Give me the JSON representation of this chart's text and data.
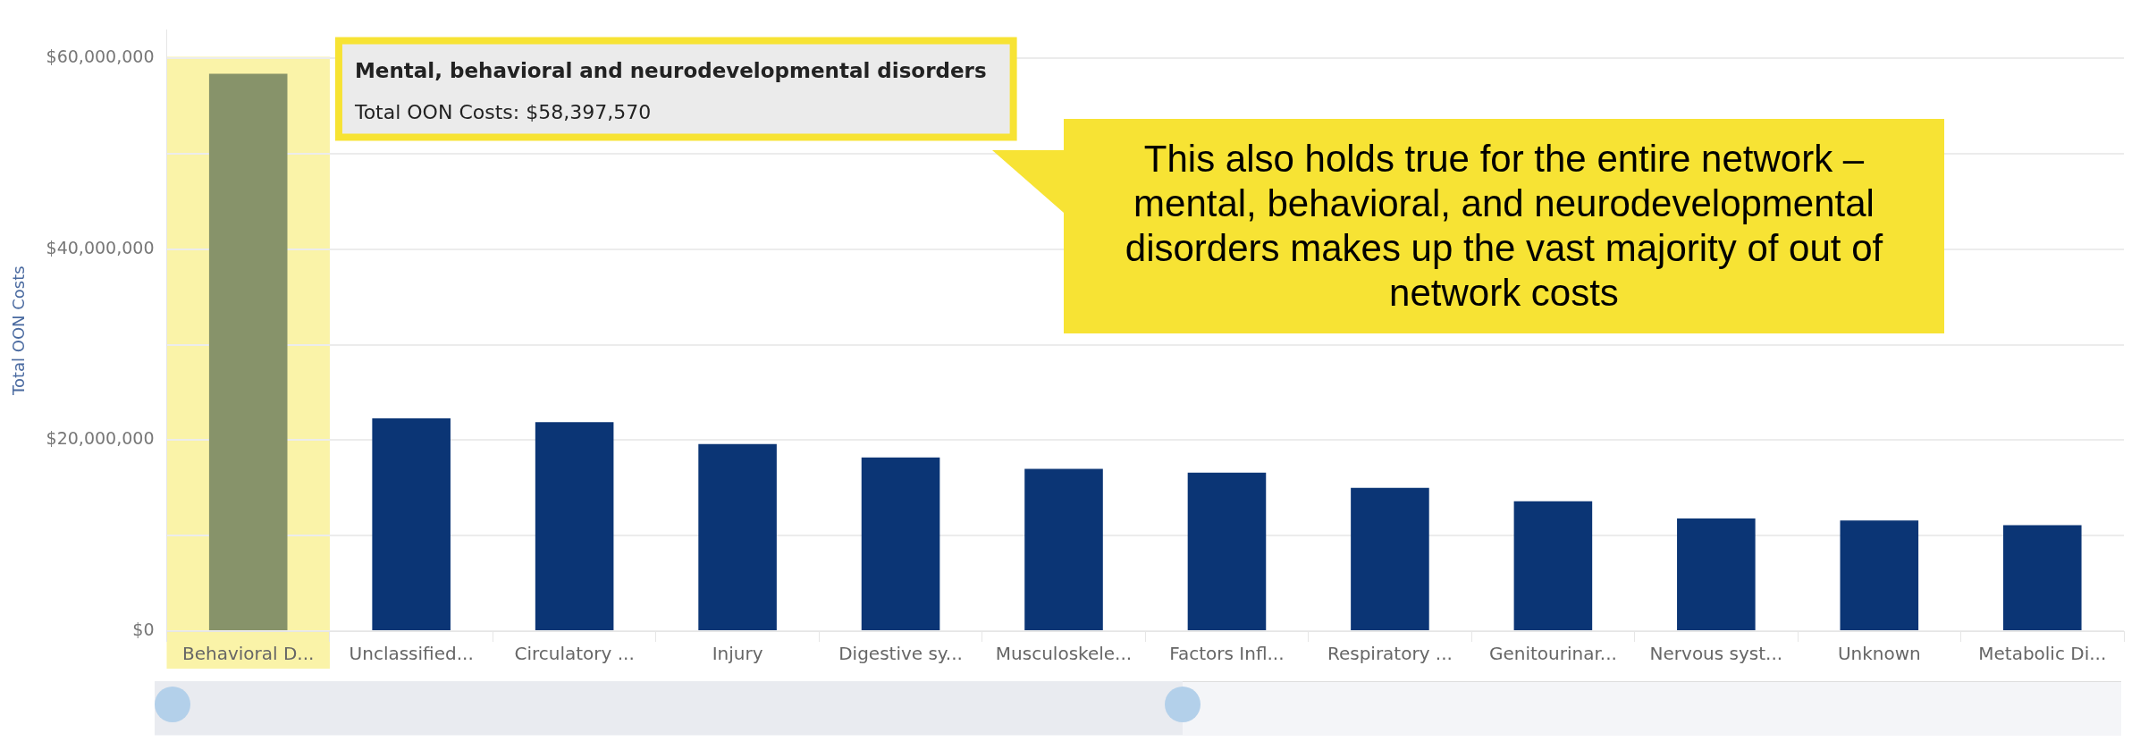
{
  "chart_data": {
    "type": "bar",
    "ylabel": "Total OON Costs",
    "categories": [
      "Behavioral D...",
      "Unclassified...",
      "Circulatory ...",
      "Injury",
      "Digestive sy...",
      "Musculoskele...",
      "Factors Infl...",
      "Respiratory ...",
      "Genitourinar...",
      "Nervous syst...",
      "Unknown",
      "Metabolic Di..."
    ],
    "values": [
      58397570,
      22300000,
      21900000,
      19600000,
      18200000,
      17000000,
      16600000,
      15000000,
      13600000,
      11800000,
      11600000,
      11100000
    ],
    "colors": [
      "#87936a",
      "#0b3575",
      "#0b3575",
      "#0b3575",
      "#0b3575",
      "#0b3575",
      "#0b3575",
      "#0b3575",
      "#0b3575",
      "#0b3575",
      "#0b3575",
      "#0b3575"
    ],
    "ylim": [
      0,
      63000000
    ],
    "yticks": [
      {
        "value": 0,
        "label": "$0"
      },
      {
        "value": 10000000,
        "label": null
      },
      {
        "value": 20000000,
        "label": "$20,000,000"
      },
      {
        "value": 30000000,
        "label": null
      },
      {
        "value": 40000000,
        "label": "$40,000,000"
      },
      {
        "value": 50000000,
        "label": null
      },
      {
        "value": 60000000,
        "label": "$60,000,000"
      }
    ],
    "grid": "y",
    "bands": [
      {
        "axis": "x",
        "from": "Behavioral D...",
        "to": "Behavioral D...",
        "color": "#faf3a8"
      }
    ],
    "annotations": [
      "Mental, behavioral and neurodevelopmental disorders",
      "Total OON Costs: $58,397,570",
      "This also holds true for the entire network – mental, behavioral, and neurodevelopmental disorders makes up the vast majority of out of network costs"
    ]
  }
}
